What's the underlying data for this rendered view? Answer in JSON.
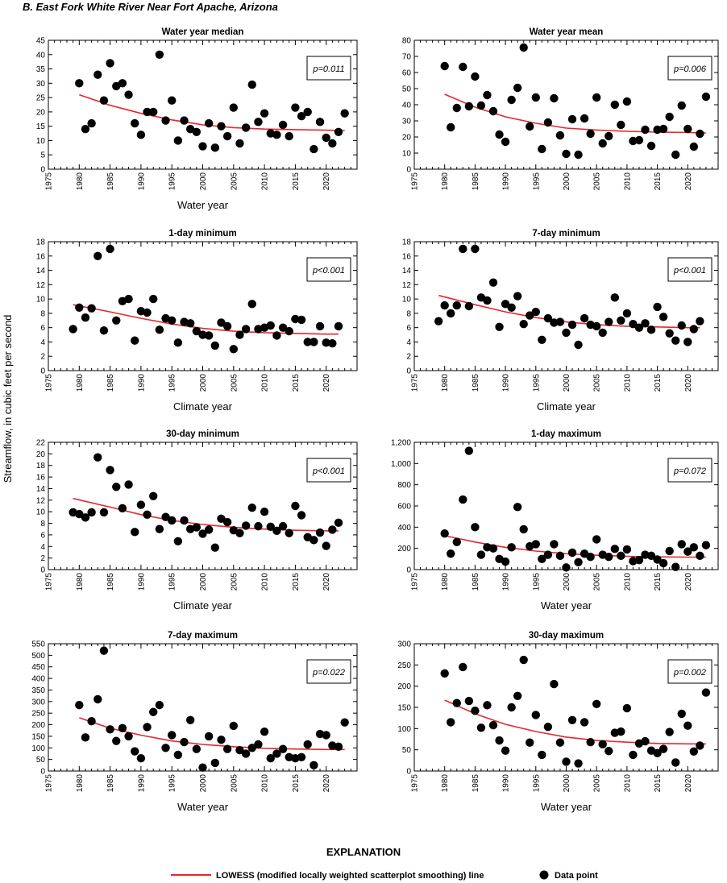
{
  "figure": {
    "title": "B. East Fork White River Near Fort Apache, Arizona",
    "y_axis_label": "Streamflow, in cubic feet per second",
    "explanation_title": "EXPLANATION",
    "legend_line_label": "LOWESS (modified locally weighted scatterplot smoothing) line",
    "legend_point_label": "Data point",
    "colors": {
      "lowess": "#e8262c",
      "points": "#000000"
    }
  },
  "chart_data": [
    {
      "type": "scatter",
      "title": "Water year median",
      "xlabel": "Water year",
      "p_value": "p=0.011",
      "xlim": [
        1975,
        2025
      ],
      "ylim": [
        0,
        45
      ],
      "yticks": [
        0,
        5,
        10,
        15,
        20,
        25,
        30,
        35,
        40,
        45
      ],
      "xticks": [
        1975,
        1980,
        1985,
        1990,
        1995,
        2000,
        2005,
        2010,
        2015,
        2020
      ],
      "x": [
        1980,
        1981,
        1982,
        1983,
        1984,
        1985,
        1986,
        1987,
        1988,
        1989,
        1990,
        1991,
        1992,
        1993,
        1994,
        1995,
        1996,
        1997,
        1998,
        1999,
        2000,
        2001,
        2002,
        2003,
        2004,
        2005,
        2006,
        2007,
        2008,
        2009,
        2010,
        2011,
        2012,
        2013,
        2014,
        2015,
        2016,
        2017,
        2018,
        2019,
        2020,
        2021,
        2022,
        2023
      ],
      "y": [
        30,
        14,
        16,
        33,
        24,
        37,
        29,
        30,
        26,
        16,
        12,
        20,
        20,
        40,
        17,
        24,
        10,
        17,
        14,
        13,
        8,
        16,
        7.5,
        15,
        11.5,
        21.5,
        9,
        14.5,
        29.5,
        16.5,
        19.5,
        12.5,
        12,
        15.5,
        11.5,
        21.5,
        18.5,
        20,
        7,
        16.5,
        11,
        9,
        13,
        19.5
      ],
      "lowess": [
        [
          1980,
          26
        ],
        [
          1985,
          22.3
        ],
        [
          1990,
          19.5
        ],
        [
          1995,
          17.2
        ],
        [
          2000,
          15.5
        ],
        [
          2005,
          14.5
        ],
        [
          2010,
          14
        ],
        [
          2015,
          13.8
        ],
        [
          2020,
          13.6
        ],
        [
          2023,
          13.5
        ]
      ]
    },
    {
      "type": "scatter",
      "title": "Water year mean",
      "xlabel": "",
      "p_value": "p=0.006",
      "xlim": [
        1975,
        2025
      ],
      "ylim": [
        0,
        80
      ],
      "yticks": [
        0,
        10,
        20,
        30,
        40,
        50,
        60,
        70,
        80
      ],
      "xticks": [
        1975,
        1980,
        1985,
        1990,
        1995,
        2000,
        2005,
        2010,
        2015,
        2020
      ],
      "x": [
        1980,
        1981,
        1982,
        1983,
        1984,
        1985,
        1986,
        1987,
        1988,
        1989,
        1990,
        1991,
        1992,
        1993,
        1994,
        1995,
        1996,
        1997,
        1998,
        1999,
        2000,
        2001,
        2002,
        2003,
        2004,
        2005,
        2006,
        2007,
        2008,
        2009,
        2010,
        2011,
        2012,
        2013,
        2014,
        2015,
        2016,
        2017,
        2018,
        2019,
        2020,
        2021,
        2022,
        2023
      ],
      "y": [
        64,
        26,
        38,
        63.5,
        39,
        57.5,
        39.5,
        46,
        36,
        21.5,
        17,
        43,
        50.5,
        75.5,
        26.5,
        44.5,
        12.5,
        29,
        44,
        21,
        9.5,
        31,
        9,
        31.5,
        22,
        44.5,
        16,
        20.5,
        40,
        27.5,
        42,
        17.5,
        18,
        24.5,
        14.5,
        24.5,
        25,
        32.5,
        9,
        39.5,
        25,
        14,
        22,
        45
      ],
      "lowess": [
        [
          1980,
          46.5
        ],
        [
          1985,
          38.5
        ],
        [
          1990,
          32.5
        ],
        [
          1995,
          28.5
        ],
        [
          2000,
          25.5
        ],
        [
          2005,
          24.3
        ],
        [
          2010,
          23.5
        ],
        [
          2015,
          23
        ],
        [
          2020,
          22.8
        ],
        [
          2023,
          22.5
        ]
      ]
    },
    {
      "type": "scatter",
      "title": "1-day minimum",
      "xlabel": "Climate year",
      "p_value": "p<0.001",
      "xlim": [
        1975,
        2025
      ],
      "ylim": [
        0,
        18
      ],
      "yticks": [
        0,
        2,
        4,
        6,
        8,
        10,
        12,
        14,
        16,
        18
      ],
      "xticks": [
        1975,
        1980,
        1985,
        1990,
        1995,
        2000,
        2005,
        2010,
        2015,
        2020
      ],
      "x": [
        1979,
        1980,
        1981,
        1982,
        1983,
        1984,
        1985,
        1986,
        1987,
        1988,
        1989,
        1990,
        1991,
        1992,
        1993,
        1994,
        1995,
        1996,
        1997,
        1998,
        1999,
        2000,
        2001,
        2002,
        2003,
        2004,
        2005,
        2006,
        2007,
        2008,
        2009,
        2010,
        2011,
        2012,
        2013,
        2014,
        2015,
        2016,
        2017,
        2018,
        2019,
        2020,
        2021,
        2022
      ],
      "y": [
        5.8,
        8.8,
        7.4,
        8.7,
        16,
        5.6,
        17,
        7,
        9.7,
        10,
        4.2,
        8.3,
        8.1,
        10,
        5.7,
        7.3,
        7,
        3.9,
        6.8,
        6.6,
        5.5,
        5,
        4.9,
        3.5,
        6.7,
        6.2,
        3,
        5,
        5.8,
        9.3,
        5.8,
        6,
        6.3,
        4.9,
        6,
        5.5,
        7.2,
        7.1,
        4,
        4,
        6.2,
        3.9,
        3.8,
        6.2
      ],
      "lowess": [
        [
          1979,
          9.2
        ],
        [
          1985,
          8.2
        ],
        [
          1990,
          7.3
        ],
        [
          1995,
          6.5
        ],
        [
          2000,
          5.9
        ],
        [
          2005,
          5.5
        ],
        [
          2010,
          5.3
        ],
        [
          2015,
          5.2
        ],
        [
          2020,
          5.1
        ],
        [
          2022,
          5.1
        ]
      ]
    },
    {
      "type": "scatter",
      "title": "7-day minimum",
      "xlabel": "Climate year",
      "p_value": "p<0.001",
      "xlim": [
        1975,
        2025
      ],
      "ylim": [
        0,
        18
      ],
      "yticks": [
        0,
        2,
        4,
        6,
        8,
        10,
        12,
        14,
        16,
        18
      ],
      "xticks": [
        1975,
        1980,
        1985,
        1990,
        1995,
        2000,
        2005,
        2010,
        2015,
        2020
      ],
      "x": [
        1979,
        1980,
        1981,
        1982,
        1983,
        1984,
        1985,
        1986,
        1987,
        1988,
        1989,
        1990,
        1991,
        1992,
        1993,
        1994,
        1995,
        1996,
        1997,
        1998,
        1999,
        2000,
        2001,
        2002,
        2003,
        2004,
        2005,
        2006,
        2007,
        2008,
        2009,
        2010,
        2011,
        2012,
        2013,
        2014,
        2015,
        2016,
        2017,
        2018,
        2019,
        2020,
        2021,
        2022
      ],
      "y": [
        6.9,
        9.1,
        8,
        9.1,
        17,
        9,
        17,
        10.2,
        9.8,
        12.3,
        6.1,
        9.3,
        8.8,
        10.4,
        6.5,
        7.7,
        8.2,
        4.3,
        7.3,
        6.7,
        6.8,
        5.3,
        6.4,
        3.6,
        7.3,
        6.4,
        6.2,
        5.3,
        6.8,
        10.2,
        7,
        8,
        6.5,
        6,
        6.6,
        5.7,
        8.9,
        7.5,
        5.2,
        4.2,
        6.3,
        4,
        5.8,
        6.9
      ],
      "lowess": [
        [
          1979,
          10.5
        ],
        [
          1985,
          9.2
        ],
        [
          1990,
          8.2
        ],
        [
          1995,
          7.4
        ],
        [
          2000,
          6.8
        ],
        [
          2005,
          6.4
        ],
        [
          2010,
          6.2
        ],
        [
          2015,
          6.1
        ],
        [
          2020,
          6
        ],
        [
          2022,
          6
        ]
      ]
    },
    {
      "type": "scatter",
      "title": "30-day minimum",
      "xlabel": "Climate year",
      "p_value": "p<0.001",
      "xlim": [
        1975,
        2025
      ],
      "ylim": [
        0,
        22
      ],
      "yticks": [
        0,
        2,
        4,
        6,
        8,
        10,
        12,
        14,
        16,
        18,
        20,
        22
      ],
      "xticks": [
        1975,
        1980,
        1985,
        1990,
        1995,
        2000,
        2005,
        2010,
        2015,
        2020
      ],
      "x": [
        1979,
        1980,
        1981,
        1982,
        1983,
        1984,
        1985,
        1986,
        1987,
        1988,
        1989,
        1990,
        1991,
        1992,
        1993,
        1994,
        1995,
        1996,
        1997,
        1998,
        1999,
        2000,
        2001,
        2002,
        2003,
        2004,
        2005,
        2006,
        2007,
        2008,
        2009,
        2010,
        2011,
        2012,
        2013,
        2014,
        2015,
        2016,
        2017,
        2018,
        2019,
        2020,
        2021,
        2022
      ],
      "y": [
        9.9,
        9.6,
        9,
        9.9,
        19.4,
        9.9,
        17.2,
        14.3,
        10.6,
        14.7,
        6.5,
        11.2,
        9.5,
        12.7,
        7,
        9.1,
        8.5,
        4.9,
        8.5,
        7,
        7.3,
        6.2,
        6.9,
        3.8,
        8.8,
        8.2,
        6.8,
        6.3,
        7.6,
        10.7,
        7.5,
        10,
        7.4,
        6.7,
        7.5,
        6.3,
        11,
        9.4,
        5.6,
        5.1,
        6.4,
        4.1,
        6.9,
        8.1
      ],
      "lowess": [
        [
          1979,
          12.3
        ],
        [
          1985,
          10.8
        ],
        [
          1990,
          9.5
        ],
        [
          1995,
          8.5
        ],
        [
          2000,
          7.8
        ],
        [
          2005,
          7.3
        ],
        [
          2010,
          7
        ],
        [
          2015,
          6.8
        ],
        [
          2020,
          6.7
        ],
        [
          2022,
          6.7
        ]
      ]
    },
    {
      "type": "scatter",
      "title": "1-day maximum",
      "xlabel": "Water year",
      "p_value": "p=0.072",
      "xlim": [
        1975,
        2025
      ],
      "ylim": [
        0,
        1200
      ],
      "yticks": [
        0,
        200,
        400,
        600,
        800,
        1000,
        1200
      ],
      "ytick_labels": [
        "0",
        "200",
        "400",
        "600",
        "800",
        "1,000",
        "1,200"
      ],
      "xticks": [
        1975,
        1980,
        1985,
        1990,
        1995,
        2000,
        2005,
        2010,
        2015,
        2020
      ],
      "x": [
        1980,
        1981,
        1982,
        1983,
        1984,
        1985,
        1986,
        1987,
        1988,
        1989,
        1990,
        1991,
        1992,
        1993,
        1994,
        1995,
        1996,
        1997,
        1998,
        1999,
        2000,
        2001,
        2002,
        2003,
        2004,
        2005,
        2006,
        2007,
        2008,
        2009,
        2010,
        2011,
        2012,
        2013,
        2014,
        2015,
        2016,
        2017,
        2018,
        2019,
        2020,
        2021,
        2022,
        2023
      ],
      "y": [
        340,
        150,
        260,
        660,
        1120,
        400,
        140,
        210,
        200,
        100,
        75,
        210,
        590,
        380,
        220,
        240,
        100,
        140,
        240,
        130,
        20,
        160,
        70,
        150,
        120,
        285,
        140,
        120,
        195,
        130,
        190,
        80,
        90,
        140,
        130,
        95,
        60,
        175,
        25,
        240,
        170,
        210,
        130,
        230
      ],
      "lowess": [
        [
          1980,
          320
        ],
        [
          1985,
          260
        ],
        [
          1990,
          210
        ],
        [
          1995,
          175
        ],
        [
          2000,
          150
        ],
        [
          2005,
          135
        ],
        [
          2010,
          125
        ],
        [
          2015,
          120
        ],
        [
          2020,
          118
        ],
        [
          2023,
          118
        ]
      ]
    },
    {
      "type": "scatter",
      "title": "7-day maximum",
      "xlabel": "Water year",
      "p_value": "p=0.022",
      "xlim": [
        1975,
        2025
      ],
      "ylim": [
        0,
        550
      ],
      "yticks": [
        0,
        50,
        100,
        150,
        200,
        250,
        300,
        350,
        400,
        450,
        500,
        550
      ],
      "xticks": [
        1975,
        1980,
        1985,
        1990,
        1995,
        2000,
        2005,
        2010,
        2015,
        2020
      ],
      "x": [
        1980,
        1981,
        1982,
        1983,
        1984,
        1985,
        1986,
        1987,
        1988,
        1989,
        1990,
        1991,
        1992,
        1993,
        1994,
        1995,
        1996,
        1997,
        1998,
        1999,
        2000,
        2001,
        2002,
        2003,
        2004,
        2005,
        2006,
        2007,
        2008,
        2009,
        2010,
        2011,
        2012,
        2013,
        2014,
        2015,
        2016,
        2017,
        2018,
        2019,
        2020,
        2021,
        2022,
        2023
      ],
      "y": [
        285,
        145,
        215,
        310,
        520,
        180,
        130,
        185,
        150,
        85,
        55,
        190,
        255,
        285,
        100,
        155,
        70,
        125,
        220,
        95,
        15,
        150,
        35,
        135,
        95,
        195,
        90,
        75,
        100,
        115,
        170,
        55,
        75,
        95,
        60,
        55,
        60,
        115,
        25,
        160,
        155,
        110,
        105,
        210
      ],
      "lowess": [
        [
          1980,
          230
        ],
        [
          1985,
          185
        ],
        [
          1990,
          155
        ],
        [
          1995,
          130
        ],
        [
          2000,
          115
        ],
        [
          2005,
          105
        ],
        [
          2010,
          98
        ],
        [
          2015,
          95
        ],
        [
          2020,
          93
        ],
        [
          2023,
          93
        ]
      ]
    },
    {
      "type": "scatter",
      "title": "30-day maximum",
      "xlabel": "Water year",
      "p_value": "p=0.002",
      "xlim": [
        1975,
        2025
      ],
      "ylim": [
        0,
        300
      ],
      "yticks": [
        0,
        50,
        100,
        150,
        200,
        250,
        300
      ],
      "xticks": [
        1975,
        1980,
        1985,
        1990,
        1995,
        2000,
        2005,
        2010,
        2015,
        2020
      ],
      "x": [
        1980,
        1981,
        1982,
        1983,
        1984,
        1985,
        1986,
        1987,
        1988,
        1989,
        1990,
        1991,
        1992,
        1993,
        1994,
        1995,
        1996,
        1997,
        1998,
        1999,
        2000,
        2001,
        2002,
        2003,
        2004,
        2005,
        2006,
        2007,
        2008,
        2009,
        2010,
        2011,
        2012,
        2013,
        2014,
        2015,
        2016,
        2017,
        2018,
        2019,
        2020,
        2021,
        2022,
        2023
      ],
      "y": [
        230,
        115,
        160,
        245,
        165,
        142,
        102,
        155,
        108,
        72,
        48,
        150,
        177,
        262,
        67,
        132,
        38,
        104,
        205,
        67,
        22,
        120,
        18,
        115,
        68,
        158,
        63,
        47,
        90,
        93,
        148,
        38,
        65,
        70,
        48,
        42,
        52,
        92,
        20,
        135,
        107,
        46,
        60,
        185
      ],
      "lowess": [
        [
          1980,
          167
        ],
        [
          1985,
          135
        ],
        [
          1990,
          110
        ],
        [
          1995,
          93
        ],
        [
          2000,
          80
        ],
        [
          2005,
          72
        ],
        [
          2010,
          68
        ],
        [
          2015,
          65
        ],
        [
          2020,
          64
        ],
        [
          2023,
          64
        ]
      ]
    }
  ]
}
